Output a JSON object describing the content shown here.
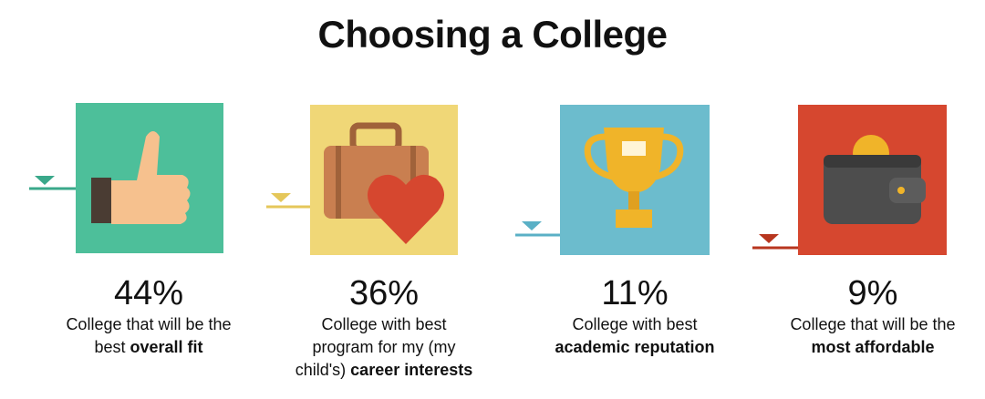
{
  "title": "Choosing a College",
  "items": [
    {
      "percent": "44%",
      "lines": [
        [
          {
            "t": "College that will be the"
          }
        ],
        [
          {
            "t": "best "
          },
          {
            "b": "overall fit"
          }
        ]
      ]
    },
    {
      "percent": "36%",
      "lines": [
        [
          {
            "t": "College with best"
          }
        ],
        [
          {
            "t": "program for my (my"
          }
        ],
        [
          {
            "t": "child's) "
          },
          {
            "b": "career interests"
          }
        ]
      ]
    },
    {
      "percent": "11%",
      "lines": [
        [
          {
            "t": "College with best"
          }
        ],
        [
          {
            "b": "academic reputation"
          }
        ]
      ]
    },
    {
      "percent": "9%",
      "lines": [
        [
          {
            "t": "College that will be the"
          }
        ],
        [
          {
            "b": "most affordable"
          }
        ]
      ]
    }
  ]
}
